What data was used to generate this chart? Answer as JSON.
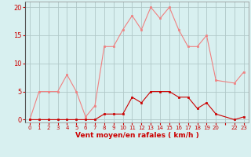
{
  "x": [
    0,
    1,
    2,
    3,
    4,
    5,
    6,
    7,
    8,
    9,
    10,
    11,
    12,
    13,
    14,
    15,
    16,
    17,
    18,
    19,
    20,
    22,
    23
  ],
  "rafales": [
    0,
    5,
    5,
    5,
    8,
    5,
    0.5,
    2.5,
    13,
    13,
    16,
    18.5,
    16,
    20,
    18,
    20,
    16,
    13,
    13,
    15,
    7,
    6.5,
    8.5
  ],
  "moyen": [
    0,
    0,
    0,
    0,
    0,
    0,
    0,
    0,
    1,
    1,
    1,
    4,
    3,
    5,
    5,
    5,
    4,
    4,
    2,
    3,
    1,
    0,
    0.5
  ],
  "bg_color": "#d8f0f0",
  "grid_color": "#b0c8c8",
  "line_color_rafales": "#f08080",
  "line_color_moyen": "#cc0000",
  "xlabel": "Vent moyen/en rafales ( km/h )",
  "xlabel_color": "#cc0000",
  "tick_color": "#cc0000",
  "yticks": [
    0,
    5,
    10,
    15,
    20
  ],
  "ylim": [
    -0.5,
    21
  ],
  "xlim": [
    -0.5,
    23.5
  ],
  "xtick_labels": [
    "0",
    "1",
    "2",
    "3",
    "4",
    "5",
    "6",
    "7",
    "8",
    "9",
    "10",
    "11",
    "12",
    "13",
    "14",
    "15",
    "16",
    "17",
    "18",
    "19",
    "20",
    "",
    "22",
    "23"
  ]
}
